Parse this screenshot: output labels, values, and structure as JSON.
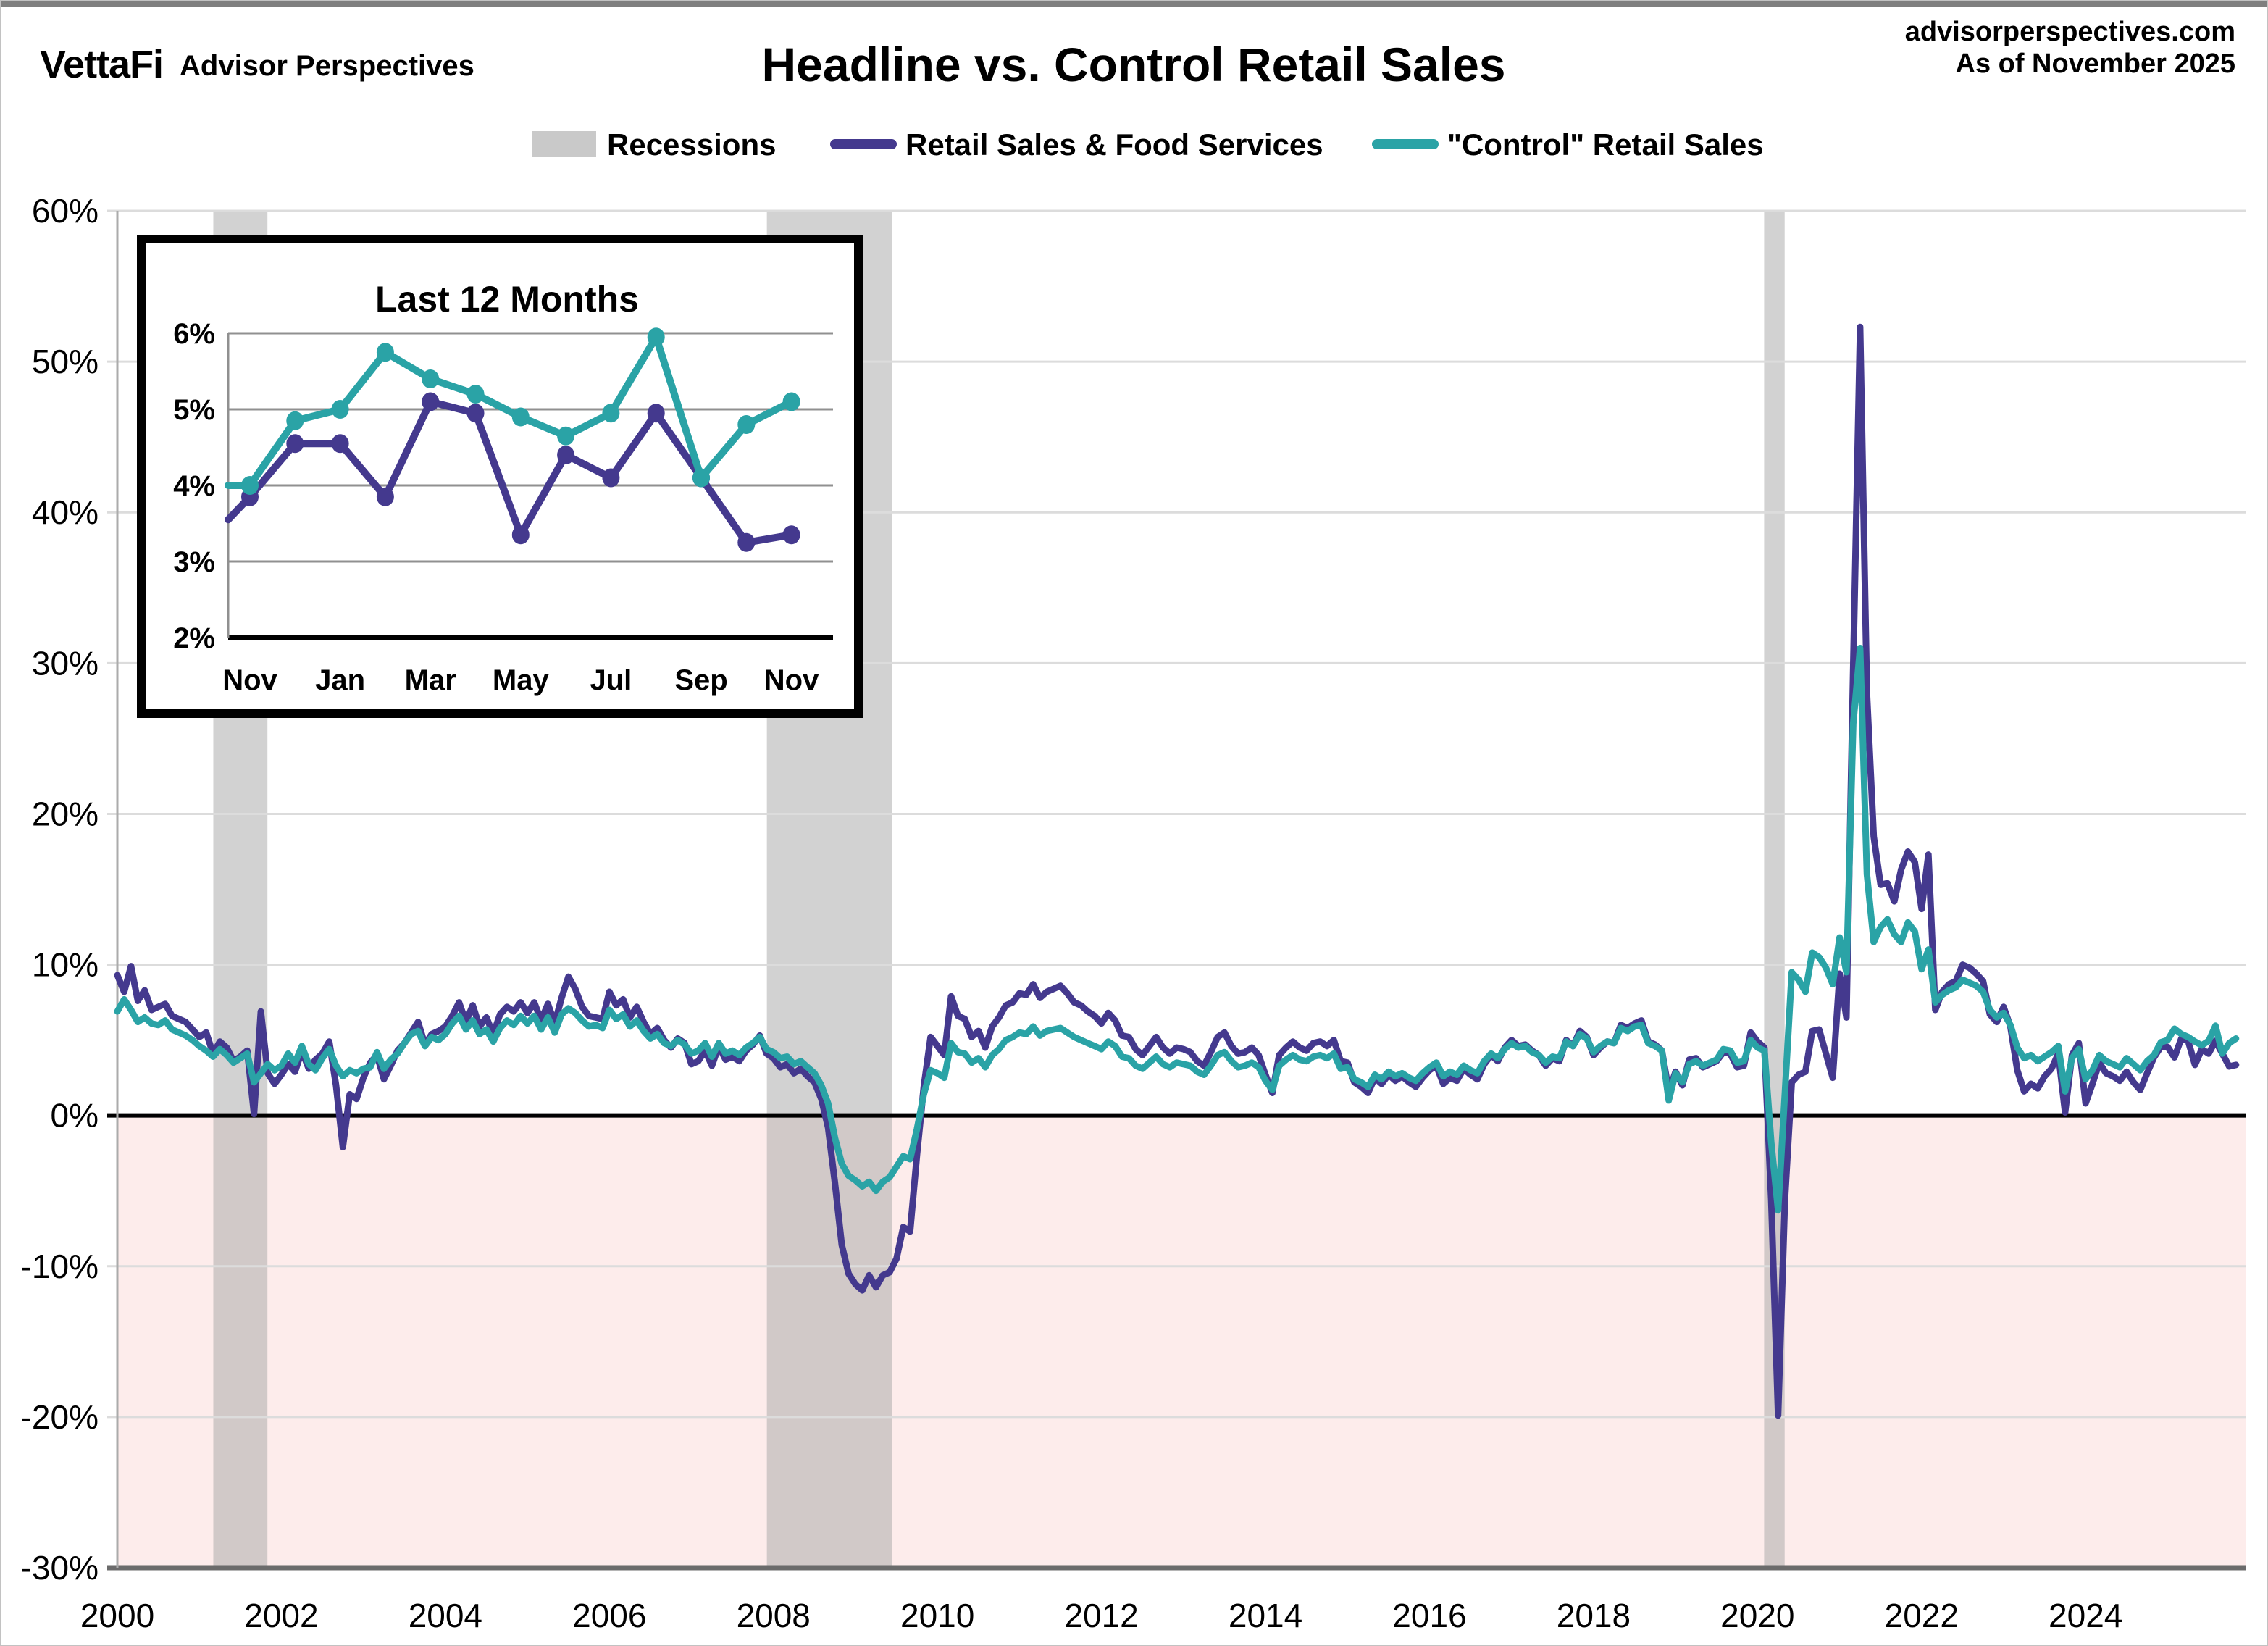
{
  "header": {
    "brand": "VettaFi",
    "brand_sub": "Advisor Perspectives",
    "title": "Headline vs. Control Retail Sales",
    "site": "advisorperspectives.com",
    "as_of": "As of November 2025"
  },
  "legend": {
    "recessions": "Recessions",
    "headline": "Retail Sales & Food Services",
    "control": "\"Control\" Retail Sales"
  },
  "colors": {
    "headline": "#44398E",
    "control": "#2AA3A6",
    "recession_band": "rgba(165,165,165,0.5)",
    "negative_bg": "#FDECEB",
    "grid": "#DCDCDC",
    "zero_line": "#000000",
    "bottom_spine": "#6B6B6B",
    "left_spine": "#ABABAB",
    "legend_gray_text": "#A9A9A9",
    "legend_gray_swatch": "#C9C9C9",
    "inset_grid": "#909090"
  },
  "chart_data": [
    {
      "id": "main",
      "type": "line",
      "title": "Headline vs. Control Retail Sales",
      "x_start_year": 2000,
      "x_step_months": 1,
      "xlim": [
        2000,
        2025.95
      ],
      "ylim": [
        -30,
        60
      ],
      "y_ticks": [
        60,
        50,
        40,
        30,
        20,
        10,
        0,
        -10,
        -20,
        -30
      ],
      "x_ticks": [
        2000,
        2002,
        2004,
        2006,
        2008,
        2010,
        2012,
        2014,
        2016,
        2018,
        2020,
        2022,
        2024
      ],
      "grid": true,
      "legend_position": "top",
      "recessions": [
        [
          2001.17,
          2001.83
        ],
        [
          2007.92,
          2009.45
        ],
        [
          2020.08,
          2020.33
        ]
      ],
      "series": [
        {
          "name": "Retail Sales & Food Services",
          "color": "#44398E",
          "values": [
            9.3,
            8.2,
            9.9,
            7.6,
            8.3,
            7.0,
            7.2,
            7.4,
            6.6,
            6.4,
            6.2,
            5.7,
            5.2,
            5.5,
            4.1,
            4.9,
            4.5,
            3.6,
            3.9,
            4.3,
            0.1,
            6.9,
            2.8,
            2.1,
            2.7,
            3.4,
            2.9,
            4.3,
            3.1,
            3.7,
            4.1,
            4.9,
            2.0,
            -2.1,
            1.4,
            1.1,
            2.5,
            3.5,
            4.0,
            2.4,
            3.3,
            4.3,
            4.8,
            5.5,
            6.2,
            4.7,
            5.4,
            5.6,
            5.9,
            6.6,
            7.5,
            6.2,
            7.3,
            5.9,
            6.5,
            5.4,
            6.7,
            7.2,
            6.9,
            7.5,
            6.8,
            7.5,
            6.3,
            7.4,
            6.1,
            7.8,
            9.2,
            8.4,
            7.2,
            6.6,
            6.5,
            6.4,
            8.2,
            7.3,
            7.7,
            6.5,
            7.2,
            6.2,
            5.4,
            5.8,
            5.0,
            4.5,
            5.1,
            4.8,
            3.4,
            3.6,
            4.3,
            3.3,
            4.6,
            3.7,
            3.9,
            3.6,
            4.3,
            4.7,
            5.3,
            4.1,
            3.8,
            3.2,
            3.4,
            2.8,
            3.1,
            2.6,
            2.2,
            1.1,
            -0.8,
            -4.5,
            -8.6,
            -10.5,
            -11.2,
            -11.6,
            -10.6,
            -11.4,
            -10.6,
            -10.4,
            -9.5,
            -7.4,
            -7.7,
            -2.6,
            1.9,
            5.2,
            4.6,
            4.0,
            7.9,
            6.6,
            6.4,
            5.2,
            5.6,
            4.5,
            5.9,
            6.5,
            7.3,
            7.5,
            8.1,
            8.0,
            8.7,
            7.8,
            8.2,
            8.4,
            8.6,
            8.1,
            7.5,
            7.3,
            6.9,
            6.6,
            6.1,
            6.8,
            6.3,
            5.3,
            5.2,
            4.4,
            4.0,
            4.6,
            5.2,
            4.5,
            4.1,
            4.5,
            4.4,
            4.2,
            3.6,
            3.3,
            4.2,
            5.2,
            5.5,
            4.6,
            4.1,
            4.2,
            4.5,
            4.0,
            2.7,
            1.5,
            4.0,
            4.5,
            4.9,
            4.5,
            4.3,
            4.8,
            4.9,
            4.6,
            5.0,
            3.6,
            3.5,
            2.2,
            1.9,
            1.5,
            2.5,
            2.1,
            2.7,
            2.3,
            2.6,
            2.2,
            1.9,
            2.5,
            3.0,
            3.3,
            2.1,
            2.5,
            2.3,
            3.1,
            2.7,
            2.4,
            3.4,
            4.0,
            3.6,
            4.5,
            5.0,
            4.6,
            4.7,
            4.3,
            4.0,
            3.3,
            3.8,
            3.6,
            5.0,
            4.6,
            5.6,
            5.2,
            4.0,
            4.5,
            4.9,
            4.8,
            6.0,
            5.8,
            6.1,
            6.3,
            4.9,
            4.7,
            4.3,
            1.6,
            2.9,
            2.0,
            3.7,
            3.8,
            3.2,
            3.4,
            3.6,
            4.2,
            4.1,
            3.2,
            3.3,
            5.5,
            4.9,
            4.5,
            -5.6,
            -19.9,
            -5.6,
            2.2,
            2.7,
            2.9,
            5.6,
            5.7,
            4.1,
            2.5,
            9.4,
            6.5,
            29.7,
            52.3,
            28.0,
            18.5,
            15.3,
            15.4,
            14.2,
            16.3,
            17.5,
            16.8,
            13.7,
            17.3,
            7.0,
            8.2,
            8.7,
            8.9,
            10.0,
            9.8,
            9.4,
            8.9,
            6.7,
            6.2,
            7.2,
            5.9,
            3.0,
            1.6,
            2.1,
            1.8,
            2.6,
            3.1,
            4.1,
            0.2,
            4.0,
            4.8,
            0.8,
            2.1,
            3.5,
            2.8,
            2.6,
            2.3,
            2.9,
            2.2,
            1.7,
            2.8,
            3.85,
            4.55,
            4.55,
            3.85,
            5.1,
            4.95,
            3.35,
            4.4,
            4.1,
            4.95,
            4.1,
            3.25,
            3.35
          ]
        },
        {
          "name": "\"Control\" Retail Sales",
          "color": "#2AA3A6",
          "values": [
            6.9,
            7.7,
            7.0,
            6.2,
            6.5,
            6.1,
            6.0,
            6.3,
            5.7,
            5.5,
            5.3,
            5.0,
            4.6,
            4.3,
            3.9,
            4.4,
            4.0,
            3.5,
            3.8,
            4.1,
            2.2,
            2.8,
            3.4,
            3.0,
            3.3,
            4.1,
            3.5,
            4.6,
            3.4,
            3.0,
            3.8,
            4.4,
            3.3,
            2.6,
            3.0,
            2.8,
            3.1,
            3.2,
            4.2,
            3.1,
            3.7,
            4.1,
            4.8,
            5.4,
            5.6,
            4.6,
            5.2,
            5.0,
            5.4,
            6.1,
            6.6,
            5.7,
            6.3,
            5.4,
            5.7,
            4.9,
            5.8,
            6.3,
            6.0,
            6.6,
            6.1,
            6.6,
            5.7,
            6.5,
            5.5,
            6.7,
            7.1,
            6.8,
            6.3,
            5.9,
            6.0,
            5.8,
            7.0,
            6.4,
            6.7,
            5.9,
            6.3,
            5.6,
            5.1,
            5.4,
            4.8,
            4.6,
            5.0,
            4.7,
            4.1,
            4.3,
            4.8,
            3.9,
            4.8,
            4.1,
            4.3,
            4.0,
            4.5,
            4.8,
            5.2,
            4.4,
            4.2,
            3.8,
            3.9,
            3.4,
            3.6,
            3.2,
            2.8,
            2.0,
            0.8,
            -1.5,
            -3.2,
            -4.0,
            -4.3,
            -4.7,
            -4.4,
            -5.0,
            -4.4,
            -4.1,
            -3.4,
            -2.7,
            -2.9,
            -0.9,
            1.4,
            3.0,
            2.8,
            2.5,
            4.8,
            4.2,
            4.1,
            3.5,
            3.8,
            3.2,
            4.0,
            4.4,
            5.0,
            5.2,
            5.5,
            5.4,
            5.9,
            5.3,
            5.6,
            5.7,
            5.8,
            5.5,
            5.2,
            5.0,
            4.8,
            4.6,
            4.4,
            4.9,
            4.6,
            3.9,
            3.8,
            3.3,
            3.1,
            3.5,
            3.9,
            3.4,
            3.2,
            3.5,
            3.4,
            3.3,
            2.9,
            2.7,
            3.3,
            4.0,
            4.2,
            3.6,
            3.2,
            3.3,
            3.5,
            3.2,
            2.3,
            1.7,
            3.3,
            3.7,
            4.0,
            3.7,
            3.6,
            3.9,
            4.0,
            3.8,
            4.1,
            3.1,
            3.2,
            2.4,
            2.2,
            1.9,
            2.7,
            2.4,
            2.9,
            2.6,
            2.8,
            2.5,
            2.3,
            2.8,
            3.2,
            3.5,
            2.6,
            2.9,
            2.7,
            3.3,
            3.0,
            2.8,
            3.6,
            4.1,
            3.8,
            4.4,
            4.8,
            4.5,
            4.6,
            4.2,
            4.0,
            3.5,
            3.9,
            3.8,
            4.9,
            4.6,
            5.4,
            5.1,
            4.2,
            4.6,
            4.9,
            4.8,
            5.8,
            5.6,
            5.9,
            6.0,
            4.8,
            4.6,
            4.3,
            1.0,
            2.8,
            2.2,
            3.4,
            3.6,
            3.3,
            3.5,
            3.7,
            4.4,
            4.3,
            3.5,
            3.6,
            5.0,
            4.5,
            4.3,
            -1.8,
            -6.3,
            1.5,
            9.5,
            9.0,
            8.2,
            10.8,
            10.5,
            9.8,
            8.7,
            11.8,
            9.5,
            26.0,
            31.0,
            16.0,
            11.5,
            12.5,
            13.0,
            12.0,
            11.5,
            12.8,
            12.2,
            9.7,
            11.0,
            7.5,
            8.0,
            8.3,
            8.5,
            9.0,
            8.8,
            8.6,
            8.2,
            7.0,
            6.5,
            6.8,
            6.0,
            4.5,
            3.8,
            4.0,
            3.6,
            3.9,
            4.2,
            4.6,
            1.6,
            3.8,
            4.4,
            2.4,
            3.0,
            4.0,
            3.6,
            3.4,
            3.2,
            3.8,
            3.4,
            3.0,
            3.6,
            4.0,
            4.85,
            5.0,
            5.75,
            5.4,
            5.2,
            4.9,
            4.65,
            4.95,
            5.95,
            4.1,
            4.8,
            5.1
          ]
        }
      ]
    },
    {
      "id": "inset",
      "type": "line",
      "title": "Last 12 Months",
      "ylim": [
        2,
        6
      ],
      "y_ticks": [
        6,
        5,
        4,
        3,
        2
      ],
      "x_tick_labels": [
        "Nov",
        "Jan",
        "Mar",
        "May",
        "Jul",
        "Sep",
        "Nov"
      ],
      "grid": true,
      "markers": true,
      "series": [
        {
          "name": "Retail Sales & Food Services",
          "color": "#44398E",
          "prelude": 3.55,
          "values": [
            3.85,
            4.55,
            4.55,
            3.85,
            5.1,
            4.95,
            3.35,
            4.4,
            4.1,
            4.95,
            4.1,
            3.25,
            3.35
          ]
        },
        {
          "name": "\"Control\" Retail Sales",
          "color": "#2AA3A6",
          "prelude": 4.0,
          "values": [
            4.0,
            4.85,
            5.0,
            5.75,
            5.4,
            5.2,
            4.9,
            4.65,
            4.95,
            5.95,
            4.1,
            4.8,
            5.1
          ]
        }
      ]
    }
  ]
}
